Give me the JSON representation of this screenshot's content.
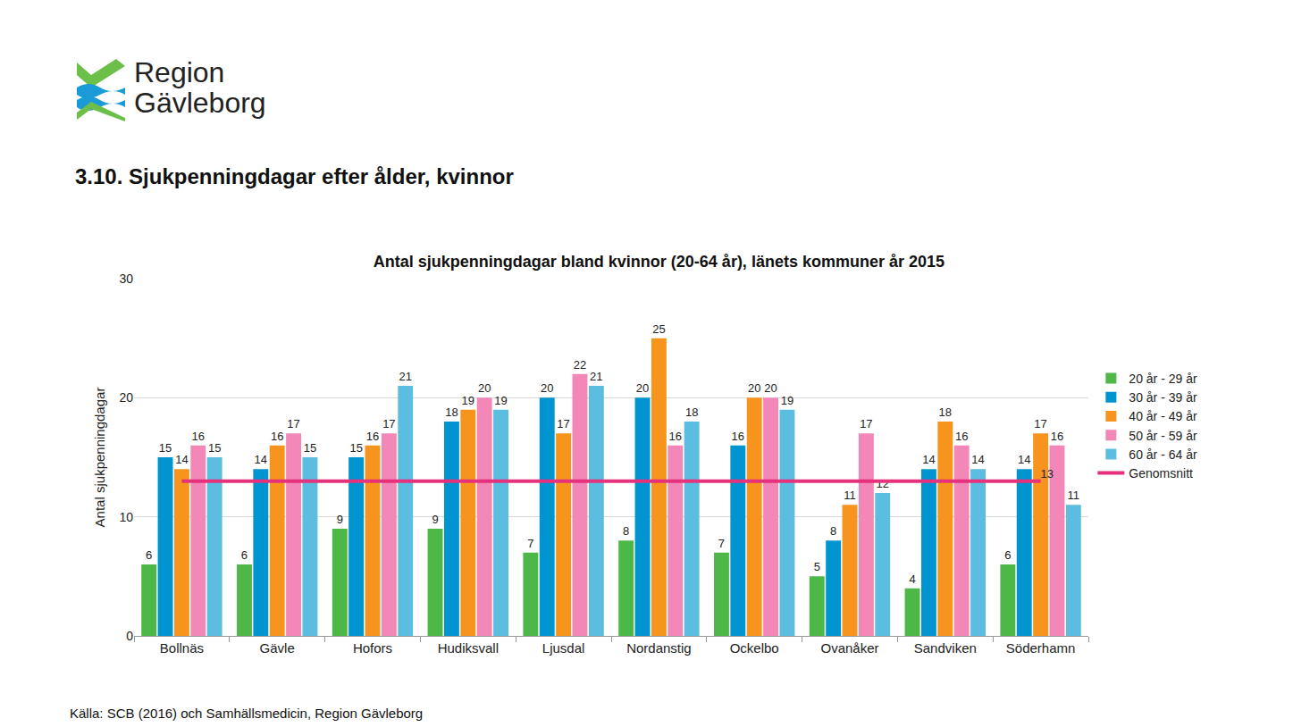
{
  "page": {
    "logo": [
      "Region",
      "Gävleborg"
    ],
    "heading": "3.10. Sjukpenningdagar efter ålder, kvinnor",
    "source": "Källa: SCB (2016) och Samhällsmedicin, Region Gävleborg"
  },
  "chart_data": {
    "type": "bar",
    "title": "Antal sjukpenningdagar bland kvinnor (20-64 år), länets kommuner år 2015",
    "y_label": "Antal sjukpenningdagar",
    "categories": [
      "Bollnäs",
      "Gävle",
      "Hofors",
      "Hudiksvall",
      "Ljusdal",
      "Nordanstig",
      "Ockelbo",
      "Ovanåker",
      "Sandviken",
      "Söderhamn"
    ],
    "series": [
      {
        "name": "20 år - 29 år",
        "color": "#4db848",
        "values": [
          6,
          6,
          9,
          9,
          7,
          8,
          7,
          5,
          4,
          6
        ]
      },
      {
        "name": "30 år - 39 år",
        "color": "#0094d0",
        "values": [
          15,
          14,
          15,
          18,
          20,
          20,
          16,
          8,
          14,
          14
        ]
      },
      {
        "name": "40 år - 49 år",
        "color": "#f7941d",
        "values": [
          14,
          16,
          16,
          19,
          17,
          25,
          20,
          11,
          18,
          17
        ]
      },
      {
        "name": "50 år - 59 år",
        "color": "#f387b8",
        "values": [
          16,
          17,
          17,
          20,
          22,
          16,
          20,
          17,
          16,
          16
        ]
      },
      {
        "name": "60 år - 64 år",
        "color": "#5bbde0",
        "values": [
          15,
          15,
          21,
          19,
          21,
          18,
          19,
          12,
          14,
          11
        ]
      },
      {
        "name": "Genomsnitt",
        "type": "line",
        "color": "#e6327d",
        "values": [
          13,
          13,
          13,
          13,
          13,
          13,
          13,
          13,
          13,
          13
        ],
        "value_labels": [
          null,
          null,
          null,
          null,
          null,
          null,
          null,
          null,
          null,
          "13"
        ]
      }
    ],
    "ylim": [
      0,
      30
    ],
    "yticks": [
      0,
      10,
      20,
      30
    ],
    "grid": true,
    "legend": "right",
    "data_labels": true
  }
}
